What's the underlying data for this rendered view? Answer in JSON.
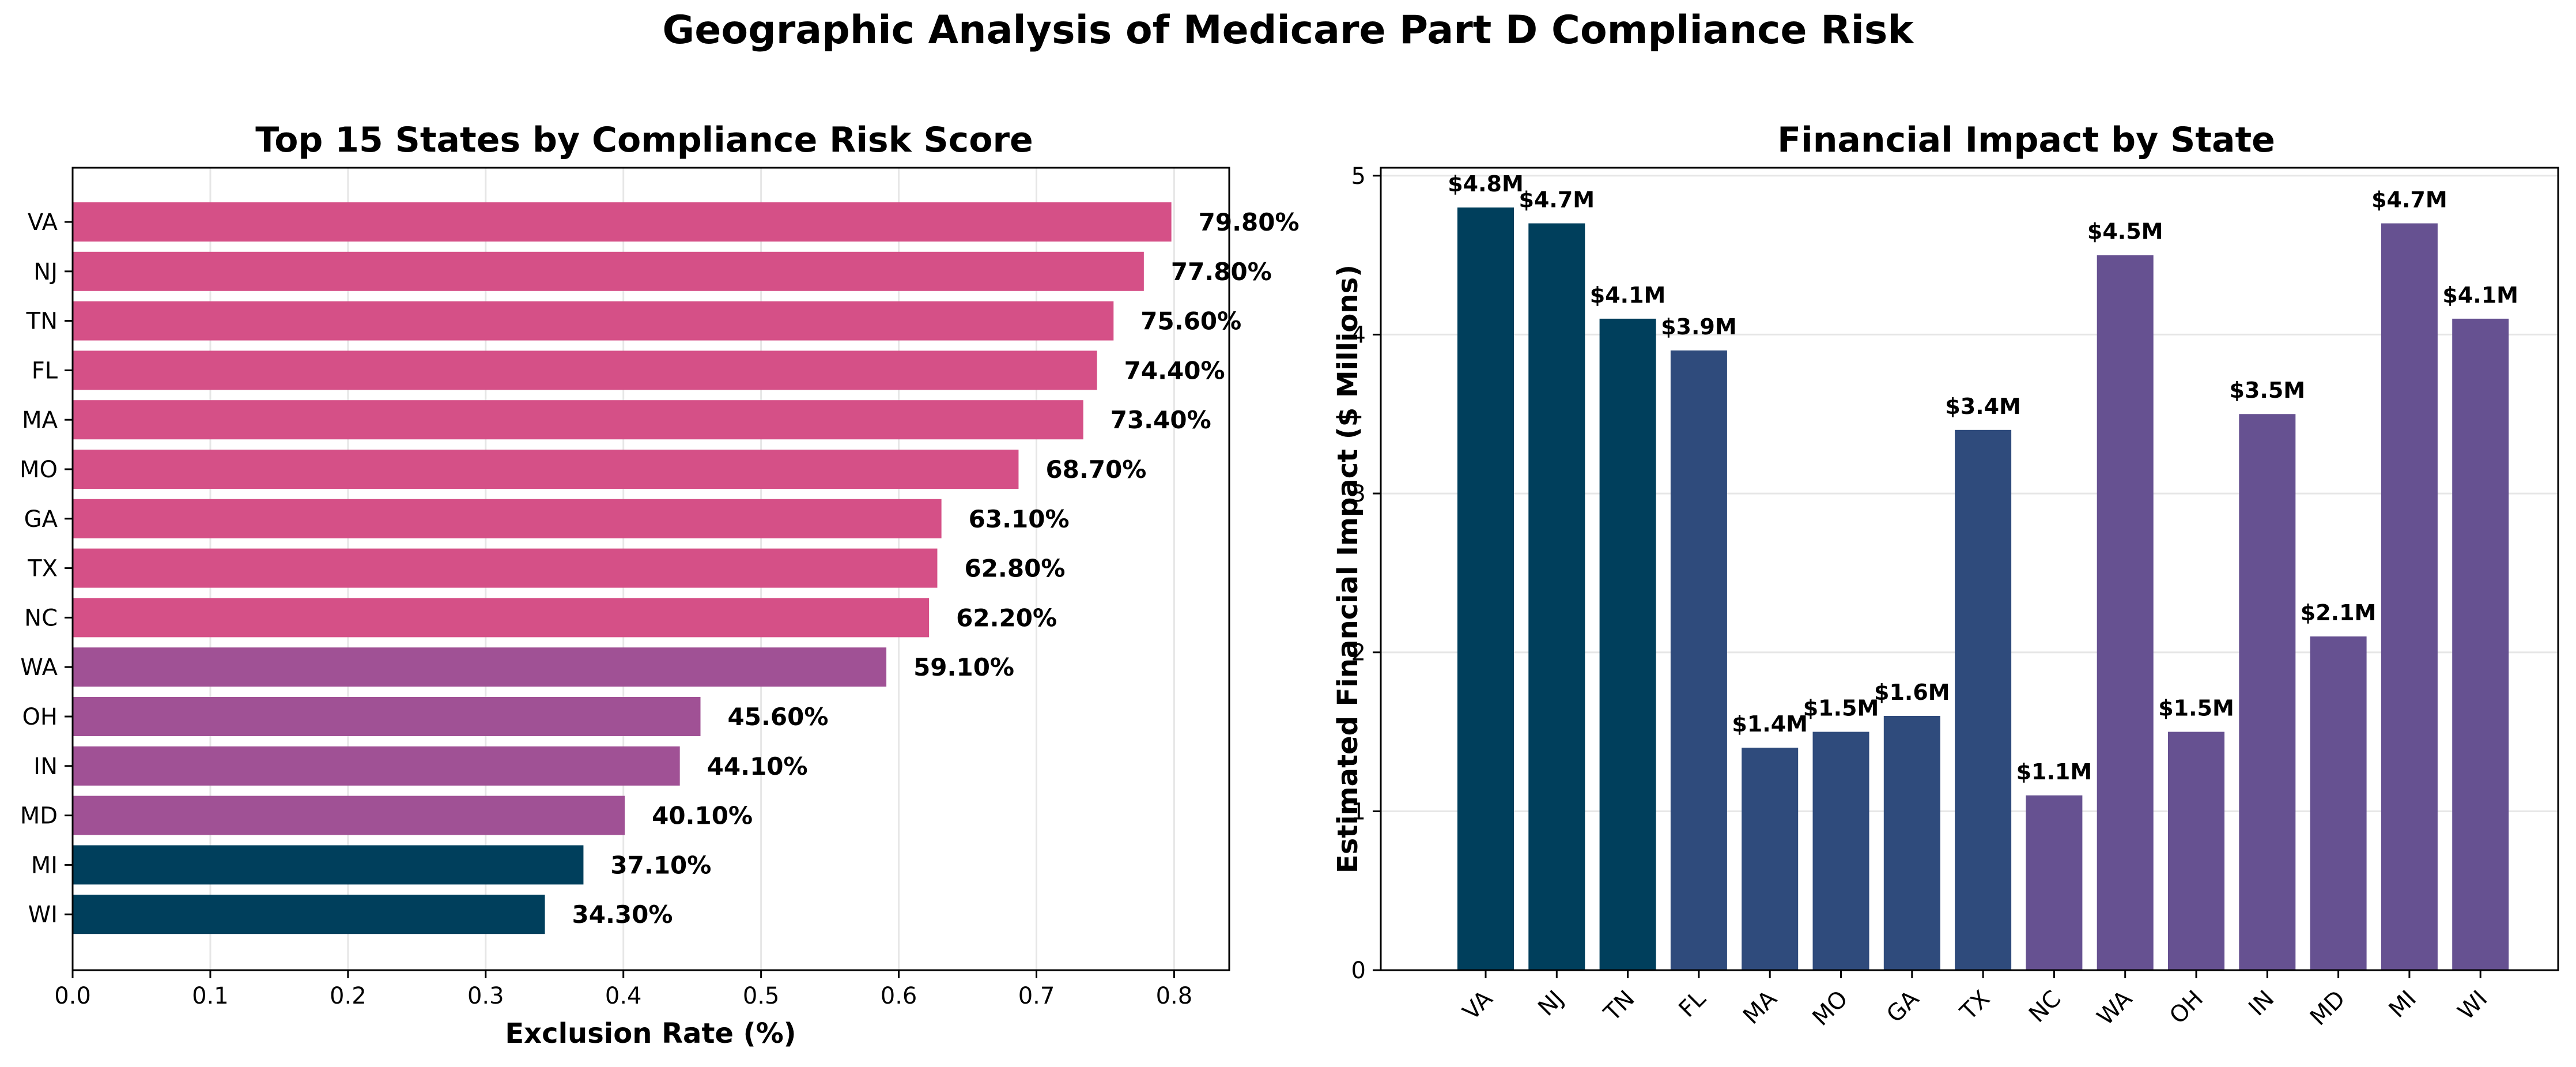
{
  "figure": {
    "title": "Geographic Analysis of Medicare Part D Compliance Risk"
  },
  "chart_data": [
    {
      "type": "bar",
      "orientation": "horizontal",
      "title": "Top 15 States by Compliance Risk Score",
      "xlabel": "Exclusion Rate (%)",
      "ylabel": "",
      "xlim": [
        0,
        0.84
      ],
      "xticks": [
        "0.0",
        "0.1",
        "0.2",
        "0.3",
        "0.4",
        "0.5",
        "0.6",
        "0.7",
        "0.8"
      ],
      "grid": "x",
      "categories": [
        "VA",
        "NJ",
        "TN",
        "FL",
        "MA",
        "MO",
        "GA",
        "TX",
        "NC",
        "WA",
        "OH",
        "IN",
        "MD",
        "MI",
        "WI"
      ],
      "values": [
        0.798,
        0.778,
        0.756,
        0.744,
        0.734,
        0.687,
        0.631,
        0.628,
        0.622,
        0.591,
        0.456,
        0.441,
        0.401,
        0.371,
        0.343
      ],
      "labels": [
        "79.80%",
        "77.80%",
        "75.60%",
        "74.40%",
        "73.40%",
        "68.70%",
        "63.10%",
        "62.80%",
        "62.20%",
        "59.10%",
        "45.60%",
        "44.10%",
        "40.10%",
        "37.10%",
        "34.30%"
      ],
      "colors": [
        "#d55087",
        "#d55087",
        "#d55087",
        "#d55087",
        "#d55087",
        "#d55087",
        "#d55087",
        "#d55087",
        "#d55087",
        "#a05195",
        "#a05195",
        "#a05195",
        "#a05195",
        "#003f5c",
        "#003f5c"
      ]
    },
    {
      "type": "bar",
      "orientation": "vertical",
      "title": "Financial Impact by State",
      "xlabel": "",
      "ylabel": "Estimated Financial Impact ($ Millions)",
      "ylim": [
        0,
        5.05
      ],
      "yticks": [
        "0",
        "1",
        "2",
        "3",
        "4",
        "5"
      ],
      "grid": "y",
      "categories": [
        "VA",
        "NJ",
        "TN",
        "FL",
        "MA",
        "MO",
        "GA",
        "TX",
        "NC",
        "WA",
        "OH",
        "IN",
        "MD",
        "MI",
        "WI"
      ],
      "values": [
        4.8,
        4.7,
        4.1,
        3.9,
        1.4,
        1.5,
        1.6,
        3.4,
        1.1,
        4.5,
        1.5,
        3.5,
        2.1,
        4.7,
        4.1
      ],
      "labels": [
        "$4.8M",
        "$4.7M",
        "$4.1M",
        "$3.9M",
        "$1.4M",
        "$1.5M",
        "$1.6M",
        "$3.4M",
        "$1.1M",
        "$4.5M",
        "$1.5M",
        "$3.5M",
        "$2.1M",
        "$4.7M",
        "$4.1M"
      ],
      "colors": [
        "#003f5c",
        "#003f5c",
        "#003f5c",
        "#2f4b7c",
        "#2f4b7c",
        "#2f4b7c",
        "#2f4b7c",
        "#2f4b7c",
        "#665191",
        "#665191",
        "#665191",
        "#665191",
        "#665191",
        "#665191",
        "#665191"
      ]
    }
  ]
}
